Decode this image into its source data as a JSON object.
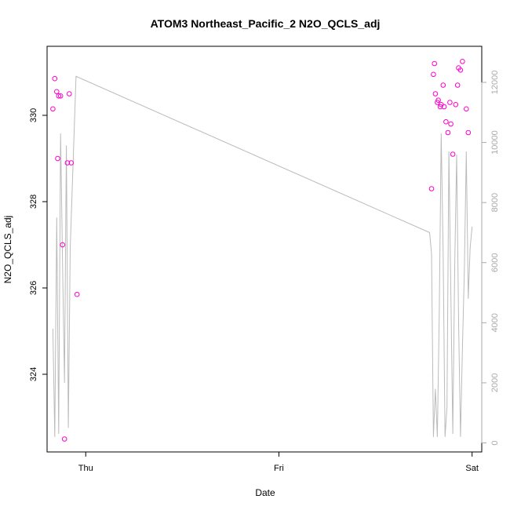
{
  "chart_data": {
    "type": "scatter",
    "title": "ATOM3 Northeast_Pacific_2 N2O_QCLS_adj",
    "xlabel": "Date",
    "ylabel": "N2O_QCLS_adj",
    "x_ticks": [
      "Thu",
      "Fri",
      "Sat"
    ],
    "xlim": [
      -0.2,
      2.05
    ],
    "ylim": [
      322.2,
      331.6
    ],
    "y_ticks": [
      324,
      326,
      328,
      330
    ],
    "y2lim": [
      -300,
      13200
    ],
    "y2_ticks": [
      0,
      2000,
      4000,
      6000,
      8000,
      10000,
      12000
    ],
    "colors": {
      "points": "#ff00cc",
      "line": "#bbbbbb"
    },
    "series": [
      {
        "kind": "points",
        "axis": "left",
        "x": [
          -0.17,
          -0.16,
          -0.15,
          -0.145,
          -0.14,
          -0.13,
          -0.12,
          -0.11,
          -0.095,
          -0.085,
          -0.075,
          -0.045,
          1.79,
          1.8,
          1.805,
          1.81,
          1.82,
          1.825,
          1.835,
          1.84,
          1.85,
          1.855,
          1.865,
          1.875,
          1.885,
          1.89,
          1.9,
          1.915,
          1.925,
          1.93,
          1.94,
          1.95,
          1.97,
          1.98
        ],
        "y": [
          330.15,
          330.85,
          330.55,
          329.0,
          330.45,
          330.45,
          327.0,
          322.5,
          328.9,
          330.5,
          328.9,
          325.85,
          328.3,
          330.95,
          331.2,
          330.5,
          330.3,
          330.35,
          330.2,
          330.25,
          330.7,
          330.2,
          329.85,
          329.6,
          330.3,
          329.8,
          329.1,
          330.25,
          330.7,
          331.1,
          331.05,
          331.25,
          330.15,
          329.6
        ]
      },
      {
        "kind": "line",
        "axis": "right",
        "x": [
          -0.17,
          -0.16,
          -0.15,
          -0.14,
          -0.13,
          -0.12,
          -0.11,
          -0.1,
          -0.09,
          -0.08,
          -0.05,
          1.78,
          1.79,
          1.8,
          1.81,
          1.82,
          1.83,
          1.84,
          1.85,
          1.86,
          1.87,
          1.88,
          1.89,
          1.9,
          1.91,
          1.92,
          1.93,
          1.94,
          1.95,
          1.96,
          1.97,
          1.98,
          1.99,
          2.0
        ],
        "y": [
          3800,
          200,
          7500,
          300,
          10300,
          6000,
          2000,
          9900,
          500,
          6500,
          12200,
          7000,
          6300,
          200,
          1800,
          200,
          4200,
          10300,
          6300,
          200,
          1200,
          9700,
          5000,
          300,
          5800,
          9600,
          4000,
          200,
          3200,
          5700,
          9700,
          4800,
          6500,
          7200
        ]
      }
    ]
  }
}
